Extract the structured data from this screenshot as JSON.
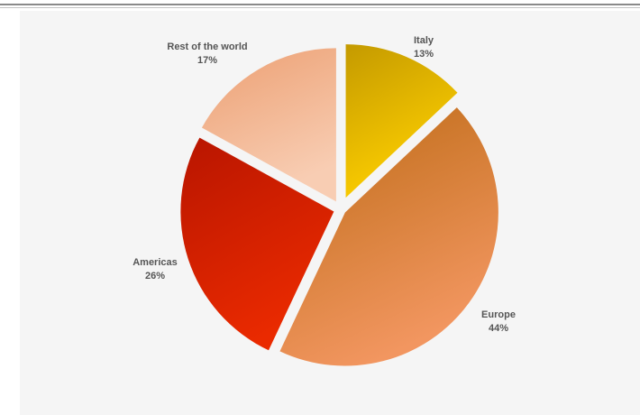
{
  "chart_data": {
    "type": "pie",
    "slices": [
      {
        "label": "Italy",
        "value_label": "13%",
        "value": 13,
        "color_light": "#ffd000",
        "color_dark": "#c49a00"
      },
      {
        "label": "Europe",
        "value_label": "44%",
        "value": 44,
        "color_light": "#f29660",
        "color_dark": "#bc6a14"
      },
      {
        "label": "Americas",
        "value_label": "26%",
        "value": 26,
        "color_light": "#ea2a00",
        "color_dark": "#b81500"
      },
      {
        "label": "Rest of the world",
        "value_label": "17%",
        "value": 17,
        "color_light": "#f8cdb3",
        "color_dark": "#ec9f72"
      }
    ],
    "start_angle_deg": 0,
    "direction": "clockwise",
    "exploded": true,
    "legend": "none"
  }
}
